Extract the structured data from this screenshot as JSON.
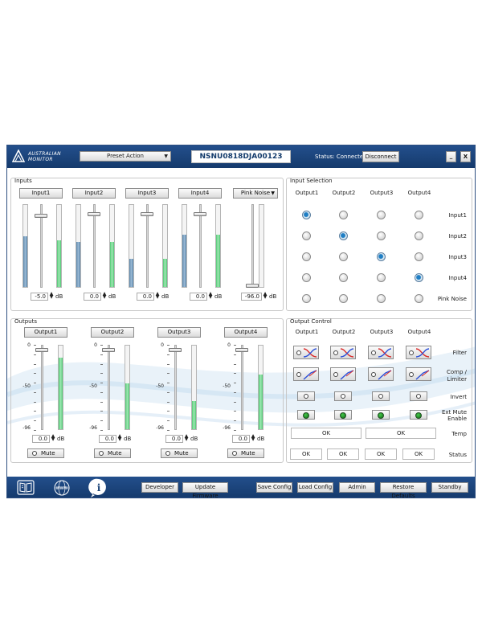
{
  "brand": {
    "line1": "AUSTRALIAN",
    "line2": "MONITOR"
  },
  "header": {
    "preset_label": "Preset Action",
    "serial": "NSNU0818DJA00123",
    "status": "Status: Connected",
    "disconnect_label": "Disconnect",
    "minimize_label": "_",
    "close_label": "X"
  },
  "inputs": {
    "title": "Inputs",
    "unit": "dB",
    "channels": [
      {
        "label": "Input1",
        "value": "-5.0",
        "level_left": 0.62,
        "level_right": 0.57,
        "fader": 0.88
      },
      {
        "label": "Input2",
        "value": "0.0",
        "level_left": 0.55,
        "level_right": 0.55,
        "fader": 0.9
      },
      {
        "label": "Input3",
        "value": "0.0",
        "level_left": 0.34,
        "level_right": 0.34,
        "fader": 0.9
      },
      {
        "label": "Input4",
        "value": "0.0",
        "level_left": 0.64,
        "level_right": 0.64,
        "fader": 0.9
      }
    ],
    "pink_noise": {
      "label": "Pink Noise",
      "value": "-96.0",
      "fader": 0.0
    }
  },
  "input_selection": {
    "title": "Input Selection",
    "columns": [
      "Output1",
      "Output2",
      "Output3",
      "Output4"
    ],
    "rows": [
      {
        "label": "Input1",
        "selected": 0
      },
      {
        "label": "Input2",
        "selected": 1
      },
      {
        "label": "Input3",
        "selected": 2
      },
      {
        "label": "Input4",
        "selected": 3
      },
      {
        "label": "Pink Noise",
        "selected": -1
      }
    ]
  },
  "outputs": {
    "title": "Outputs",
    "unit": "dB",
    "scale": [
      "0",
      "-50",
      "-96"
    ],
    "mute_label": "Mute",
    "channels": [
      {
        "label": "Output1",
        "value": "0.0",
        "level": 0.86,
        "fader": 0.96
      },
      {
        "label": "Output2",
        "value": "0.0",
        "level": 0.55,
        "fader": 0.96
      },
      {
        "label": "Output3",
        "value": "0.0",
        "level": 0.34,
        "fader": 0.96
      },
      {
        "label": "Output4",
        "value": "0.0",
        "level": 0.65,
        "fader": 0.96
      }
    ]
  },
  "output_control": {
    "title": "Output Control",
    "columns": [
      "Output1",
      "Output2",
      "Output3",
      "Output4"
    ],
    "row_labels": {
      "filter": "Filter",
      "comp1": "Comp /",
      "comp2": "Limiter",
      "invert": "Invert",
      "extmute1": "Ext Mute",
      "extmute2": "Enable",
      "temp": "Temp",
      "status": "Status"
    },
    "temp": [
      "OK",
      "OK"
    ],
    "status": [
      "OK",
      "OK",
      "OK",
      "OK"
    ]
  },
  "footer": {
    "developer": "Developer",
    "update_firmware": "Update Firmware",
    "save_config": "Save Config",
    "load_config": "Load Config",
    "admin": "Admin",
    "restore_defaults": "Restore Defaults",
    "standby": "Standby",
    "www_label": "WWW",
    "info_label": "i"
  },
  "colors": {
    "brand": "#1c4579",
    "meter_blue": "#7aa3c4",
    "meter_green": "#6ed68b",
    "led_green": "#1d8b22"
  }
}
